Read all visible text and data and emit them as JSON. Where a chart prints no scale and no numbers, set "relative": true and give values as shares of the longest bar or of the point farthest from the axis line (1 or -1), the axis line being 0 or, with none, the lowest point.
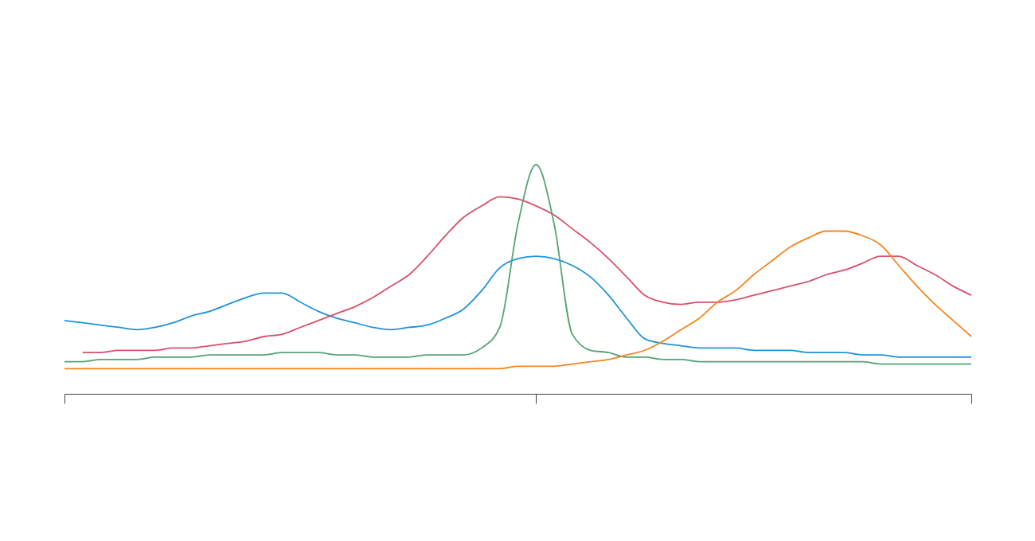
{
  "chart_data": {
    "type": "line",
    "relative": true,
    "tick_labels": false,
    "categories": [
      null,
      null,
      null,
      null,
      null,
      null,
      null,
      null,
      null,
      null,
      null,
      null,
      null,
      null,
      null,
      null,
      null,
      null,
      null,
      null,
      null,
      null,
      null,
      null,
      null,
      null,
      null,
      null,
      null,
      null,
      null,
      null,
      null,
      null,
      null,
      null,
      null,
      null,
      null,
      null,
      null,
      null,
      null,
      null,
      null,
      null,
      null,
      null,
      null,
      null,
      null
    ],
    "series": [
      {
        "color": "#1f93d8",
        "values": [
          0.32,
          0.31,
          0.3,
          0.29,
          0.28,
          0.29,
          0.31,
          0.34,
          0.36,
          0.39,
          0.42,
          0.44,
          0.44,
          0.4,
          0.36,
          0.33,
          0.31,
          0.29,
          0.28,
          0.29,
          0.3,
          0.33,
          0.37,
          0.45,
          0.55,
          0.59,
          0.6,
          0.59,
          0.56,
          0.51,
          0.43,
          0.33,
          0.24,
          0.22,
          0.21,
          0.2,
          0.2,
          0.2,
          0.19,
          0.19,
          0.19,
          0.18,
          0.18,
          0.18,
          0.17,
          0.17,
          0.16,
          0.16,
          0.16,
          0.16,
          0.16
        ]
      },
      {
        "color": "#d9506a",
        "values": [
          null,
          0.18,
          0.18,
          0.19,
          0.19,
          0.19,
          0.2,
          0.2,
          0.21,
          0.22,
          0.23,
          0.25,
          0.26,
          0.29,
          0.32,
          0.35,
          0.38,
          0.42,
          0.47,
          0.52,
          0.6,
          0.69,
          0.77,
          0.82,
          0.86,
          0.85,
          0.82,
          0.78,
          0.72,
          0.66,
          0.59,
          0.51,
          0.43,
          0.4,
          0.39,
          0.4,
          0.4,
          0.41,
          0.43,
          0.45,
          0.47,
          0.49,
          0.52,
          0.54,
          0.57,
          0.6,
          0.6,
          0.56,
          0.52,
          0.47,
          0.43
        ]
      },
      {
        "color": "#55a375",
        "values": [
          0.14,
          0.14,
          0.15,
          0.15,
          0.15,
          0.16,
          0.16,
          0.16,
          0.17,
          0.17,
          0.17,
          0.17,
          0.18,
          0.18,
          0.18,
          0.17,
          0.17,
          0.16,
          0.16,
          0.16,
          0.17,
          0.17,
          0.17,
          0.2,
          0.29,
          0.74,
          1,
          0.74,
          0.26,
          0.19,
          0.18,
          0.16,
          0.16,
          0.15,
          0.15,
          0.14,
          0.14,
          0.14,
          0.14,
          0.14,
          0.14,
          0.14,
          0.14,
          0.14,
          0.14,
          0.13,
          0.13,
          0.13,
          0.13,
          0.13,
          0.13
        ]
      },
      {
        "color": "#f5841f",
        "values": [
          0.11,
          0.11,
          0.11,
          0.11,
          0.11,
          0.11,
          0.11,
          0.11,
          0.11,
          0.11,
          0.11,
          0.11,
          0.11,
          0.11,
          0.11,
          0.11,
          0.11,
          0.11,
          0.11,
          0.11,
          0.11,
          0.11,
          0.11,
          0.11,
          0.11,
          0.12,
          0.12,
          0.12,
          0.13,
          0.14,
          0.15,
          0.17,
          0.19,
          0.23,
          0.28,
          0.33,
          0.4,
          0.45,
          0.52,
          0.58,
          0.64,
          0.68,
          0.71,
          0.71,
          0.69,
          0.65,
          0.56,
          0.47,
          0.39,
          0.32,
          0.25
        ]
      }
    ]
  }
}
